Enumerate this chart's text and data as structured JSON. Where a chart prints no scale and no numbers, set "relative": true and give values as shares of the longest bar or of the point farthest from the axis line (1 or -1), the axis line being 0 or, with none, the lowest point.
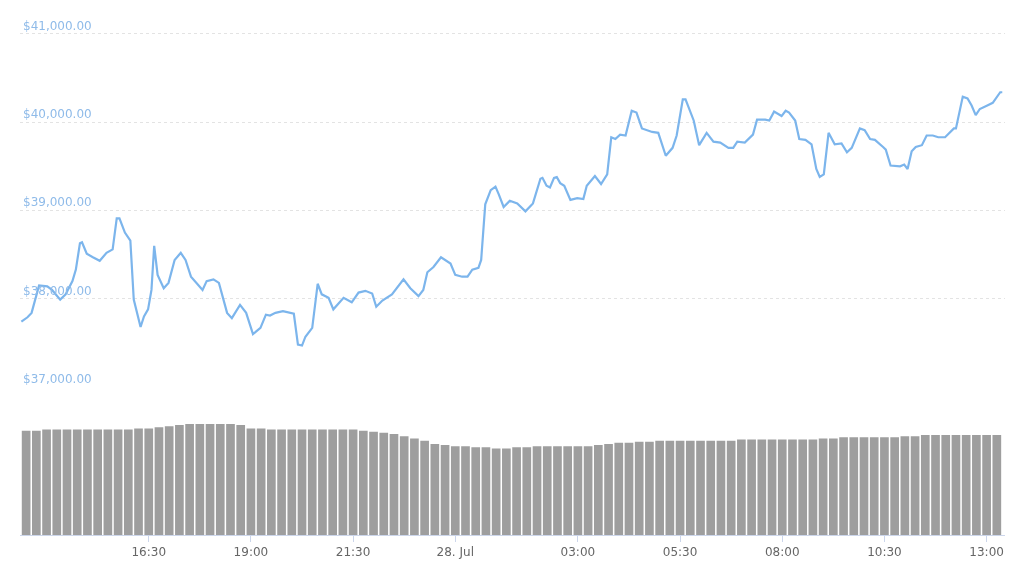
{
  "chart_data": [
    {
      "type": "line",
      "color": "#7cb5ec",
      "grid": "y",
      "tick_labels": "y",
      "xlim": [
        "--07-27T13:21",
        "--07-28T13:27"
      ],
      "ylim": [
        37000,
        41385
      ],
      "yticks": [
        {
          "value": 37000,
          "label": "$37,000.00"
        },
        {
          "value": 38000,
          "label": "$38,000.00"
        },
        {
          "value": 39000,
          "label": "$39,000.00"
        },
        {
          "value": 40000,
          "label": "$40,000.00"
        },
        {
          "value": 41000,
          "label": "$41,000.00"
        }
      ],
      "x": [
        "--07-27T13:23",
        "--07-27T13:32",
        "--07-27T13:38",
        "--07-27T13:49",
        "--07-27T14:01",
        "--07-27T14:08",
        "--07-27T14:20",
        "--07-27T14:28",
        "--07-27T14:38",
        "--07-27T14:43",
        "--07-27T14:49",
        "--07-27T14:52",
        "--07-27T14:59",
        "--07-27T15:08",
        "--07-27T15:18",
        "--07-27T15:28",
        "--07-27T15:37",
        "--07-27T15:43",
        "--07-27T15:47",
        "--07-27T15:55",
        "--07-27T16:03",
        "--07-27T16:08",
        "--07-27T16:18",
        "--07-27T16:23",
        "--07-27T16:29",
        "--07-27T16:34",
        "--07-27T16:38",
        "--07-27T16:43",
        "--07-27T16:52",
        "--07-27T16:59",
        "--07-27T17:08",
        "--07-27T17:17",
        "--07-27T17:24",
        "--07-27T17:32",
        "--07-27T17:49",
        "--07-27T17:55",
        "--07-27T18:05",
        "--07-27T18:13",
        "--07-27T18:25",
        "--07-27T18:32",
        "--07-27T18:44",
        "--07-27T18:53",
        "--07-27T19:03",
        "--07-27T19:14",
        "--07-27T19:22",
        "--07-27T19:28",
        "--07-27T19:36",
        "--07-27T19:47",
        "--07-27T20:03",
        "--07-27T20:09",
        "--07-27T20:15",
        "--07-27T20:20",
        "--07-27T20:30",
        "--07-27T20:38",
        "--07-27T20:44",
        "--07-27T20:54",
        "--07-27T21:01",
        "--07-27T21:16",
        "--07-27T21:28",
        "--07-27T21:38",
        "--07-27T21:48",
        "--07-27T21:58",
        "--07-27T22:04",
        "--07-27T22:13",
        "--07-27T22:27",
        "--07-27T22:44",
        "--07-27T22:54",
        "--07-27T23:06",
        "--07-27T23:13",
        "--07-27T23:19",
        "--07-27T23:28",
        "--07-27T23:39",
        "--07-27T23:53",
        "--07-28T00:00",
        "--07-28T00:10",
        "--07-28T00:18",
        "--07-28T00:25",
        "--07-28T00:34",
        "--07-28T00:38",
        "--07-28T00:44",
        "--07-28T00:52",
        "--07-28T00:59",
        "--07-28T01:04",
        "--07-28T01:11",
        "--07-28T01:20",
        "--07-28T01:31",
        "--07-28T01:43",
        "--07-28T01:54",
        "--07-28T02:05",
        "--07-28T02:08",
        "--07-28T02:14",
        "--07-28T02:19",
        "--07-28T02:25",
        "--07-28T02:29",
        "--07-28T02:34",
        "--07-28T02:40",
        "--07-28T02:49",
        "--07-28T02:59",
        "--07-28T03:08",
        "--07-28T03:13",
        "--07-28T03:25",
        "--07-28T03:34",
        "--07-28T03:43",
        "--07-28T03:49",
        "--07-28T03:55",
        "--07-28T04:02",
        "--07-28T04:10",
        "--07-28T04:19",
        "--07-28T04:26",
        "--07-28T04:34",
        "--07-28T04:49",
        "--07-28T04:58",
        "--07-28T05:09",
        "--07-28T05:19",
        "--07-28T05:25",
        "--07-28T05:34",
        "--07-28T05:38",
        "--07-28T05:50",
        "--07-28T05:58",
        "--07-28T06:09",
        "--07-28T06:19",
        "--07-28T06:29",
        "--07-28T06:41",
        "--07-28T06:48",
        "--07-28T06:54",
        "--07-28T07:05",
        "--07-28T07:17",
        "--07-28T07:23",
        "--07-28T07:35",
        "--07-28T07:41",
        "--07-28T07:48",
        "--07-28T07:59",
        "--07-28T08:05",
        "--07-28T08:10",
        "--07-28T08:19",
        "--07-28T08:25",
        "--07-28T08:34",
        "--07-28T08:43",
        "--07-28T08:50",
        "--07-28T08:55",
        "--07-28T09:01",
        "--07-28T09:08",
        "--07-28T09:17",
        "--07-28T09:27",
        "--07-28T09:35",
        "--07-28T09:42",
        "--07-28T09:54",
        "--07-28T10:01",
        "--07-28T10:09",
        "--07-28T10:16",
        "--07-28T10:28",
        "--07-28T10:32",
        "--07-28T10:39",
        "--07-28T10:53",
        "--07-28T10:59",
        "--07-28T11:04",
        "--07-28T11:10",
        "--07-28T11:16",
        "--07-28T11:25",
        "--07-28T11:32",
        "--07-28T11:41",
        "--07-28T11:49",
        "--07-28T11:59",
        "--07-28T12:12",
        "--07-28T12:15",
        "--07-28T12:25",
        "--07-28T12:32",
        "--07-28T12:38",
        "--07-28T12:44",
        "--07-28T12:50",
        "--07-28T13:01",
        "--07-28T13:09",
        "--07-28T13:20",
        "--07-28T13:23"
      ],
      "values": [
        37740,
        37790,
        37840,
        38150,
        38140,
        38100,
        37990,
        38050,
        38200,
        38330,
        38630,
        38640,
        38510,
        38470,
        38430,
        38520,
        38560,
        38910,
        38910,
        38750,
        38660,
        37990,
        37680,
        37800,
        37880,
        38100,
        38600,
        38270,
        38120,
        38180,
        38440,
        38520,
        38440,
        38250,
        38100,
        38200,
        38220,
        38180,
        37840,
        37780,
        37930,
        37840,
        37600,
        37670,
        37820,
        37810,
        37840,
        37860,
        37830,
        37480,
        37470,
        37570,
        37670,
        38170,
        38050,
        38010,
        37880,
        38010,
        37960,
        38070,
        38090,
        38060,
        37910,
        37980,
        38050,
        38220,
        38120,
        38030,
        38100,
        38300,
        38360,
        38470,
        38400,
        38270,
        38250,
        38250,
        38330,
        38350,
        38440,
        39070,
        39230,
        39270,
        39180,
        39040,
        39110,
        39080,
        38990,
        39080,
        39360,
        39370,
        39280,
        39260,
        39370,
        39380,
        39310,
        39280,
        39120,
        39140,
        39130,
        39280,
        39390,
        39300,
        39410,
        39830,
        39810,
        39860,
        39850,
        40130,
        40110,
        39930,
        39890,
        39880,
        39620,
        39710,
        39850,
        40260,
        40260,
        40020,
        39740,
        39880,
        39780,
        39770,
        39710,
        39710,
        39780,
        39770,
        39860,
        40030,
        40030,
        40020,
        40120,
        40070,
        40130,
        40110,
        40020,
        39810,
        39800,
        39750,
        39470,
        39380,
        39410,
        39880,
        39750,
        39760,
        39660,
        39710,
        39930,
        39910,
        39810,
        39800,
        39720,
        39690,
        39510,
        39500,
        39520,
        39470,
        39670,
        39720,
        39740,
        39850,
        39850,
        39830,
        39830,
        39930,
        39930,
        40290,
        40270,
        40190,
        40080,
        40150,
        40190,
        40220,
        40340,
        40340
      ]
    },
    {
      "type": "bar",
      "color": "#9e9e9e",
      "relative": true,
      "xlim": [
        "--07-27T13:21",
        "--07-28T13:27"
      ],
      "xticks": [
        {
          "value": "--07-27T16:30",
          "label": "16:30"
        },
        {
          "value": "--07-27T19:00",
          "label": "19:00"
        },
        {
          "value": "--07-27T21:30",
          "label": "21:30"
        },
        {
          "value": "--07-28T00:00",
          "label": "28. Jul"
        },
        {
          "value": "--07-28T03:00",
          "label": "03:00"
        },
        {
          "value": "--07-28T05:30",
          "label": "05:30"
        },
        {
          "value": "--07-28T08:00",
          "label": "08:00"
        },
        {
          "value": "--07-28T10:30",
          "label": "10:30"
        },
        {
          "value": "--07-28T13:00",
          "label": "13:00"
        }
      ],
      "x": [
        "--07-27T13:30",
        "--07-27T13:45",
        "--07-27T14:00",
        "--07-27T14:15",
        "--07-27T14:30",
        "--07-27T14:45",
        "--07-27T15:00",
        "--07-27T15:15",
        "--07-27T15:30",
        "--07-27T15:45",
        "--07-27T16:00",
        "--07-27T16:15",
        "--07-27T16:30",
        "--07-27T16:45",
        "--07-27T17:00",
        "--07-27T17:15",
        "--07-27T17:30",
        "--07-27T17:45",
        "--07-27T18:00",
        "--07-27T18:15",
        "--07-27T18:30",
        "--07-27T18:45",
        "--07-27T19:00",
        "--07-27T19:15",
        "--07-27T19:30",
        "--07-27T19:45",
        "--07-27T20:00",
        "--07-27T20:15",
        "--07-27T20:30",
        "--07-27T20:45",
        "--07-27T21:00",
        "--07-27T21:15",
        "--07-27T21:30",
        "--07-27T21:45",
        "--07-27T22:00",
        "--07-27T22:15",
        "--07-27T22:30",
        "--07-27T22:45",
        "--07-27T23:00",
        "--07-27T23:15",
        "--07-27T23:30",
        "--07-27T23:45",
        "--07-28T00:00",
        "--07-28T00:15",
        "--07-28T00:30",
        "--07-28T00:45",
        "--07-28T01:00",
        "--07-28T01:15",
        "--07-28T01:30",
        "--07-28T01:45",
        "--07-28T02:00",
        "--07-28T02:15",
        "--07-28T02:30",
        "--07-28T02:45",
        "--07-28T03:00",
        "--07-28T03:15",
        "--07-28T03:30",
        "--07-28T03:45",
        "--07-28T04:00",
        "--07-28T04:15",
        "--07-28T04:30",
        "--07-28T04:45",
        "--07-28T05:00",
        "--07-28T05:15",
        "--07-28T05:30",
        "--07-28T05:45",
        "--07-28T06:00",
        "--07-28T06:15",
        "--07-28T06:30",
        "--07-28T06:45",
        "--07-28T07:00",
        "--07-28T07:15",
        "--07-28T07:30",
        "--07-28T07:45",
        "--07-28T08:00",
        "--07-28T08:15",
        "--07-28T08:30",
        "--07-28T08:45",
        "--07-28T09:00",
        "--07-28T09:15",
        "--07-28T09:30",
        "--07-28T09:45",
        "--07-28T10:00",
        "--07-28T10:15",
        "--07-28T10:30",
        "--07-28T10:45",
        "--07-28T11:00",
        "--07-28T11:15",
        "--07-28T11:30",
        "--07-28T11:45",
        "--07-28T12:00",
        "--07-28T12:15",
        "--07-28T12:30",
        "--07-28T12:45",
        "--07-28T13:00",
        "--07-28T13:15"
      ],
      "values": [
        0.94,
        0.94,
        0.95,
        0.95,
        0.95,
        0.95,
        0.95,
        0.95,
        0.95,
        0.95,
        0.95,
        0.96,
        0.96,
        0.97,
        0.98,
        0.99,
        1,
        1,
        1,
        1,
        1,
        0.99,
        0.96,
        0.96,
        0.95,
        0.95,
        0.95,
        0.95,
        0.95,
        0.95,
        0.95,
        0.95,
        0.95,
        0.94,
        0.93,
        0.92,
        0.91,
        0.89,
        0.87,
        0.85,
        0.82,
        0.81,
        0.8,
        0.8,
        0.79,
        0.79,
        0.78,
        0.78,
        0.79,
        0.79,
        0.8,
        0.8,
        0.8,
        0.8,
        0.8,
        0.8,
        0.81,
        0.82,
        0.83,
        0.83,
        0.84,
        0.84,
        0.85,
        0.85,
        0.85,
        0.85,
        0.85,
        0.85,
        0.85,
        0.85,
        0.86,
        0.86,
        0.86,
        0.86,
        0.86,
        0.86,
        0.86,
        0.86,
        0.87,
        0.87,
        0.88,
        0.88,
        0.88,
        0.88,
        0.88,
        0.88,
        0.89,
        0.89,
        0.9,
        0.9,
        0.9,
        0.9,
        0.9,
        0.9,
        0.9,
        0.9
      ]
    }
  ]
}
